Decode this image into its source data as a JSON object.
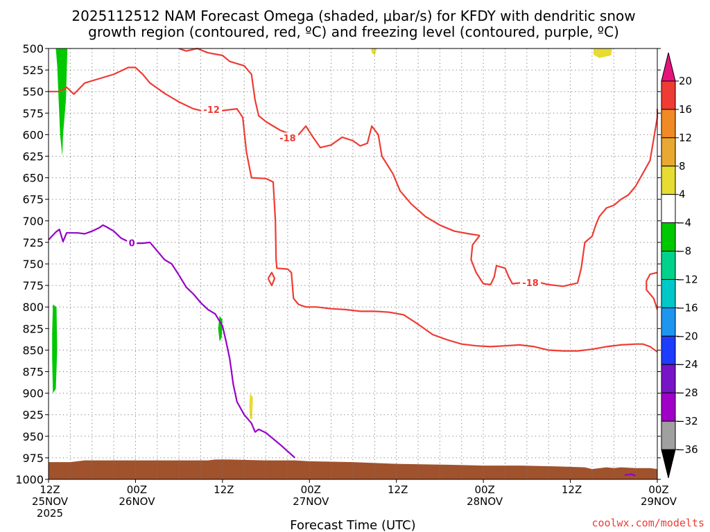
{
  "title": {
    "line1": "2025112512 NAM Forecast Omega (shaded, μbar/s) for KFDY with dendritic snow",
    "line2": "growth region (contoured, red, ºC) and freezing level (contoured, purple, ºC)"
  },
  "credit": "coolwx.com/modelts",
  "colors": {
    "red_contour": "#ee3b33",
    "purple_contour": "#9600c8",
    "terrain": "#a0522d",
    "grid": "#777777"
  },
  "chart_data": {
    "type": "time-height cross section",
    "y_axis": {
      "units": "hPa",
      "range": [
        500,
        1000
      ],
      "ticks": [
        "500",
        "525",
        "550",
        "575",
        "600",
        "625",
        "650",
        "675",
        "700",
        "725",
        "750",
        "775",
        "800",
        "825",
        "850",
        "875",
        "900",
        "925",
        "950",
        "975",
        "1000"
      ]
    },
    "x_axis": {
      "title": "Forecast Time (UTC)",
      "units": "hours from 2025-11-25 12Z",
      "range": [
        0,
        84
      ],
      "ticks": [
        {
          "hour": 0,
          "line1": "12Z",
          "line2": "25NOV",
          "line3": "2025"
        },
        {
          "hour": 12,
          "line1": "00Z",
          "line2": "26NOV",
          "line3": ""
        },
        {
          "hour": 24,
          "line1": "12Z",
          "line2": "",
          "line3": ""
        },
        {
          "hour": 36,
          "line1": "00Z",
          "line2": "27NOV",
          "line3": ""
        },
        {
          "hour": 48,
          "line1": "12Z",
          "line2": "",
          "line3": ""
        },
        {
          "hour": 60,
          "line1": "00Z",
          "line2": "28NOV",
          "line3": ""
        },
        {
          "hour": 72,
          "line1": "12Z",
          "line2": "",
          "line3": ""
        },
        {
          "hour": 84,
          "line1": "00Z",
          "line2": "29NOV",
          "line3": ""
        }
      ]
    },
    "colorbar": {
      "units": "μbar/s",
      "labels": [
        "20",
        "16",
        "12",
        "8",
        "4",
        "-4",
        "-8",
        "-12",
        "-16",
        "-20",
        "-24",
        "-28",
        "-32",
        "-36"
      ],
      "bins": [
        {
          "range": [
            16,
            20
          ],
          "color": "#ee3b33"
        },
        {
          "range": [
            12,
            16
          ],
          "color": "#f08a24"
        },
        {
          "range": [
            8,
            12
          ],
          "color": "#e8a832"
        },
        {
          "range": [
            4,
            8
          ],
          "color": "#e6dc32"
        },
        {
          "range": [
            -4,
            4
          ],
          "color": "#ffffff"
        },
        {
          "range": [
            -8,
            -4
          ],
          "color": "#00c800"
        },
        {
          "range": [
            -12,
            -8
          ],
          "color": "#00d28c"
        },
        {
          "range": [
            -16,
            -12
          ],
          "color": "#00c8c8"
        },
        {
          "range": [
            -20,
            -16
          ],
          "color": "#1e96f0"
        },
        {
          "range": [
            -24,
            -20
          ],
          "color": "#1e3cff"
        },
        {
          "range": [
            -28,
            -24
          ],
          "color": "#7814c8"
        },
        {
          "range": [
            -32,
            -28
          ],
          "color": "#a000c8"
        },
        {
          "range": [
            -36,
            -32
          ],
          "color": "#a0a0a0"
        }
      ],
      "top_arrow_color": "#e6147a",
      "bottom_arrow_color": "#000000"
    },
    "shaded_regions": [
      {
        "value": "-4 to -8",
        "color": "#00c800",
        "points": [
          [
            1.0,
            500
          ],
          [
            2.6,
            500
          ],
          [
            2.4,
            560
          ],
          [
            2.0,
            600
          ],
          [
            1.9,
            625
          ],
          [
            1.6,
            600
          ],
          [
            1.4,
            560
          ],
          [
            1.2,
            520
          ]
        ]
      },
      {
        "value": "-4 to -8",
        "color": "#00c800",
        "points": [
          [
            0.6,
            797
          ],
          [
            1.1,
            800
          ],
          [
            1.2,
            850
          ],
          [
            1.0,
            895
          ],
          [
            0.6,
            900
          ],
          [
            0.5,
            860
          ],
          [
            0.5,
            830
          ]
        ]
      },
      {
        "value": "-4 to -8",
        "color": "#00c800",
        "points": [
          [
            23.6,
            810
          ],
          [
            24.0,
            815
          ],
          [
            23.9,
            835
          ],
          [
            23.6,
            840
          ],
          [
            23.4,
            825
          ]
        ]
      },
      {
        "value": "4 to 8",
        "color": "#e6dc32",
        "points": [
          [
            27.8,
            900
          ],
          [
            28.2,
            905
          ],
          [
            28.1,
            930
          ],
          [
            27.8,
            930
          ],
          [
            27.7,
            915
          ]
        ]
      },
      {
        "value": "4 to 8",
        "color": "#e6dc32",
        "points": [
          [
            44.5,
            500
          ],
          [
            45.3,
            500
          ],
          [
            45.0,
            508
          ],
          [
            44.6,
            505
          ]
        ]
      },
      {
        "value": "4 to 8",
        "color": "#e6dc32",
        "points": [
          [
            75.2,
            500
          ],
          [
            77.8,
            500
          ],
          [
            77.6,
            508
          ],
          [
            76.0,
            511
          ],
          [
            75.2,
            507
          ]
        ]
      }
    ],
    "red_contours": [
      {
        "level": "-12",
        "label_at": [
          22.5,
          571
        ],
        "points": [
          [
            0,
            550
          ],
          [
            1.5,
            550
          ],
          [
            2.5,
            545
          ],
          [
            3.5,
            553
          ],
          [
            5,
            540
          ],
          [
            7,
            535
          ],
          [
            9,
            530
          ],
          [
            11,
            522
          ],
          [
            12,
            522
          ],
          [
            13,
            530
          ],
          [
            14,
            540
          ],
          [
            16,
            552
          ],
          [
            18,
            562
          ],
          [
            20,
            570
          ],
          [
            22,
            574
          ],
          [
            24,
            572
          ],
          [
            26,
            570
          ],
          [
            26.8,
            580
          ],
          [
            27.3,
            620
          ],
          [
            28,
            650
          ],
          [
            30,
            651
          ],
          [
            31,
            655
          ],
          [
            31.3,
            700
          ],
          [
            31.4,
            745
          ],
          [
            31.5,
            755
          ],
          [
            33,
            756
          ],
          [
            33.5,
            760
          ],
          [
            33.8,
            790
          ],
          [
            34.5,
            797
          ],
          [
            35.5,
            800
          ],
          [
            37,
            800
          ],
          [
            39,
            802
          ],
          [
            41,
            803
          ],
          [
            43,
            805
          ],
          [
            45,
            805
          ],
          [
            47,
            806
          ],
          [
            49,
            809
          ],
          [
            51,
            820
          ],
          [
            53,
            832
          ],
          [
            55,
            838
          ],
          [
            57,
            843
          ],
          [
            59,
            845
          ],
          [
            61,
            846
          ],
          [
            63,
            845
          ],
          [
            65,
            844
          ],
          [
            67,
            846
          ],
          [
            69,
            850
          ],
          [
            71,
            851
          ],
          [
            73,
            851
          ],
          [
            75,
            849
          ],
          [
            77,
            846
          ],
          [
            79,
            844
          ],
          [
            81,
            843
          ],
          [
            82,
            843
          ],
          [
            83,
            846
          ],
          [
            84,
            852
          ]
        ]
      },
      {
        "level": "-12",
        "label_at": [
          0,
          0
        ],
        "points": [
          [
            18,
            500
          ],
          [
            19,
            503
          ],
          [
            20.5,
            500
          ],
          [
            22,
            505
          ],
          [
            24,
            508
          ],
          [
            25,
            515
          ],
          [
            27,
            520
          ],
          [
            28,
            530
          ],
          [
            28.5,
            560
          ],
          [
            29,
            578
          ],
          [
            30,
            585
          ],
          [
            31,
            590
          ],
          [
            32,
            595
          ]
        ]
      },
      {
        "level": "-18",
        "label_at": [
          33,
          604
        ],
        "points": [
          [
            32,
            595
          ],
          [
            33.5,
            600
          ],
          [
            34.5,
            600
          ],
          [
            35.5,
            590
          ],
          [
            36.5,
            603
          ],
          [
            37.5,
            615
          ],
          [
            39,
            612
          ],
          [
            40.5,
            603
          ],
          [
            42,
            607
          ],
          [
            43,
            613
          ],
          [
            44,
            610
          ],
          [
            44.6,
            590
          ],
          [
            45.5,
            600
          ],
          [
            46,
            625
          ],
          [
            47.5,
            645
          ],
          [
            48.5,
            665
          ],
          [
            50,
            680
          ],
          [
            52,
            695
          ],
          [
            54,
            705
          ],
          [
            56,
            712
          ],
          [
            58,
            715
          ],
          [
            59.5,
            717
          ]
        ]
      },
      {
        "level": "-18",
        "label_at": [
          66.5,
          772
        ],
        "points": [
          [
            59.5,
            717
          ],
          [
            58.5,
            728
          ],
          [
            58.3,
            745
          ],
          [
            59,
            760
          ],
          [
            60,
            773
          ],
          [
            61,
            774
          ],
          [
            61.5,
            765
          ],
          [
            61.8,
            752
          ],
          [
            63,
            755
          ],
          [
            63.5,
            765
          ],
          [
            64,
            773
          ],
          [
            65,
            772
          ],
          [
            67,
            770
          ],
          [
            69,
            774
          ],
          [
            71,
            776
          ],
          [
            72,
            774
          ],
          [
            73,
            772
          ],
          [
            73.5,
            755
          ],
          [
            74,
            725
          ],
          [
            75,
            718
          ],
          [
            75.5,
            705
          ],
          [
            76,
            695
          ],
          [
            77,
            685
          ],
          [
            78,
            682
          ],
          [
            79,
            675
          ],
          [
            80,
            670
          ],
          [
            81,
            660
          ],
          [
            82,
            645
          ],
          [
            83,
            630
          ],
          [
            83.5,
            605
          ],
          [
            84,
            580
          ],
          [
            84,
            570
          ]
        ]
      },
      {
        "level": "closed",
        "label_at": [
          0,
          0
        ],
        "points": [
          [
            30.3,
            767
          ],
          [
            30.8,
            760
          ],
          [
            31.2,
            767
          ],
          [
            30.8,
            775
          ],
          [
            30.3,
            767
          ]
        ]
      },
      {
        "level": "edge",
        "label_at": [
          0,
          0
        ],
        "points": [
          [
            84,
            760
          ],
          [
            83,
            762
          ],
          [
            82.5,
            770
          ],
          [
            82.5,
            780
          ],
          [
            83.5,
            790
          ],
          [
            84,
            803
          ]
        ]
      }
    ],
    "purple_contours": [
      {
        "level": "0",
        "label_at": [
          11.5,
          726
        ],
        "points": [
          [
            0,
            722
          ],
          [
            1,
            713
          ],
          [
            1.5,
            710
          ],
          [
            2,
            724
          ],
          [
            2.5,
            714
          ],
          [
            4,
            714
          ],
          [
            5,
            715
          ],
          [
            6,
            712
          ],
          [
            7,
            708
          ],
          [
            7.5,
            705
          ],
          [
            8,
            707
          ],
          [
            9,
            712
          ],
          [
            10,
            720
          ],
          [
            11,
            724
          ],
          [
            12,
            726
          ],
          [
            13,
            726
          ],
          [
            14,
            725
          ],
          [
            15,
            735
          ],
          [
            16,
            745
          ],
          [
            17,
            750
          ],
          [
            18,
            763
          ],
          [
            19,
            777
          ],
          [
            20,
            785
          ],
          [
            21,
            795
          ],
          [
            22,
            803
          ],
          [
            23,
            808
          ],
          [
            24,
            822
          ],
          [
            24.5,
            840
          ],
          [
            25,
            860
          ],
          [
            25.5,
            890
          ],
          [
            26,
            910
          ],
          [
            27,
            925
          ],
          [
            28,
            935
          ],
          [
            28.5,
            945
          ],
          [
            29,
            942
          ],
          [
            30,
            946
          ],
          [
            32,
            960
          ],
          [
            34,
            975
          ]
        ]
      },
      {
        "level": "0",
        "label_at": [
          0,
          0
        ],
        "points": [
          [
            79.5,
            995
          ],
          [
            80.5,
            994
          ],
          [
            81,
            996
          ]
        ]
      }
    ],
    "terrain_top": [
      [
        0,
        980
      ],
      [
        3,
        980
      ],
      [
        5,
        978
      ],
      [
        10,
        978
      ],
      [
        22,
        978
      ],
      [
        23,
        977
      ],
      [
        25,
        977
      ],
      [
        30,
        978
      ],
      [
        34,
        978
      ],
      [
        36,
        979
      ],
      [
        42,
        980
      ],
      [
        48,
        982
      ],
      [
        55,
        983
      ],
      [
        60,
        984
      ],
      [
        65,
        984
      ],
      [
        70,
        985
      ],
      [
        74,
        986
      ],
      [
        75,
        988
      ],
      [
        77,
        986
      ],
      [
        78,
        987
      ],
      [
        79,
        986
      ],
      [
        81,
        987
      ],
      [
        83,
        987
      ],
      [
        84,
        988
      ]
    ]
  }
}
